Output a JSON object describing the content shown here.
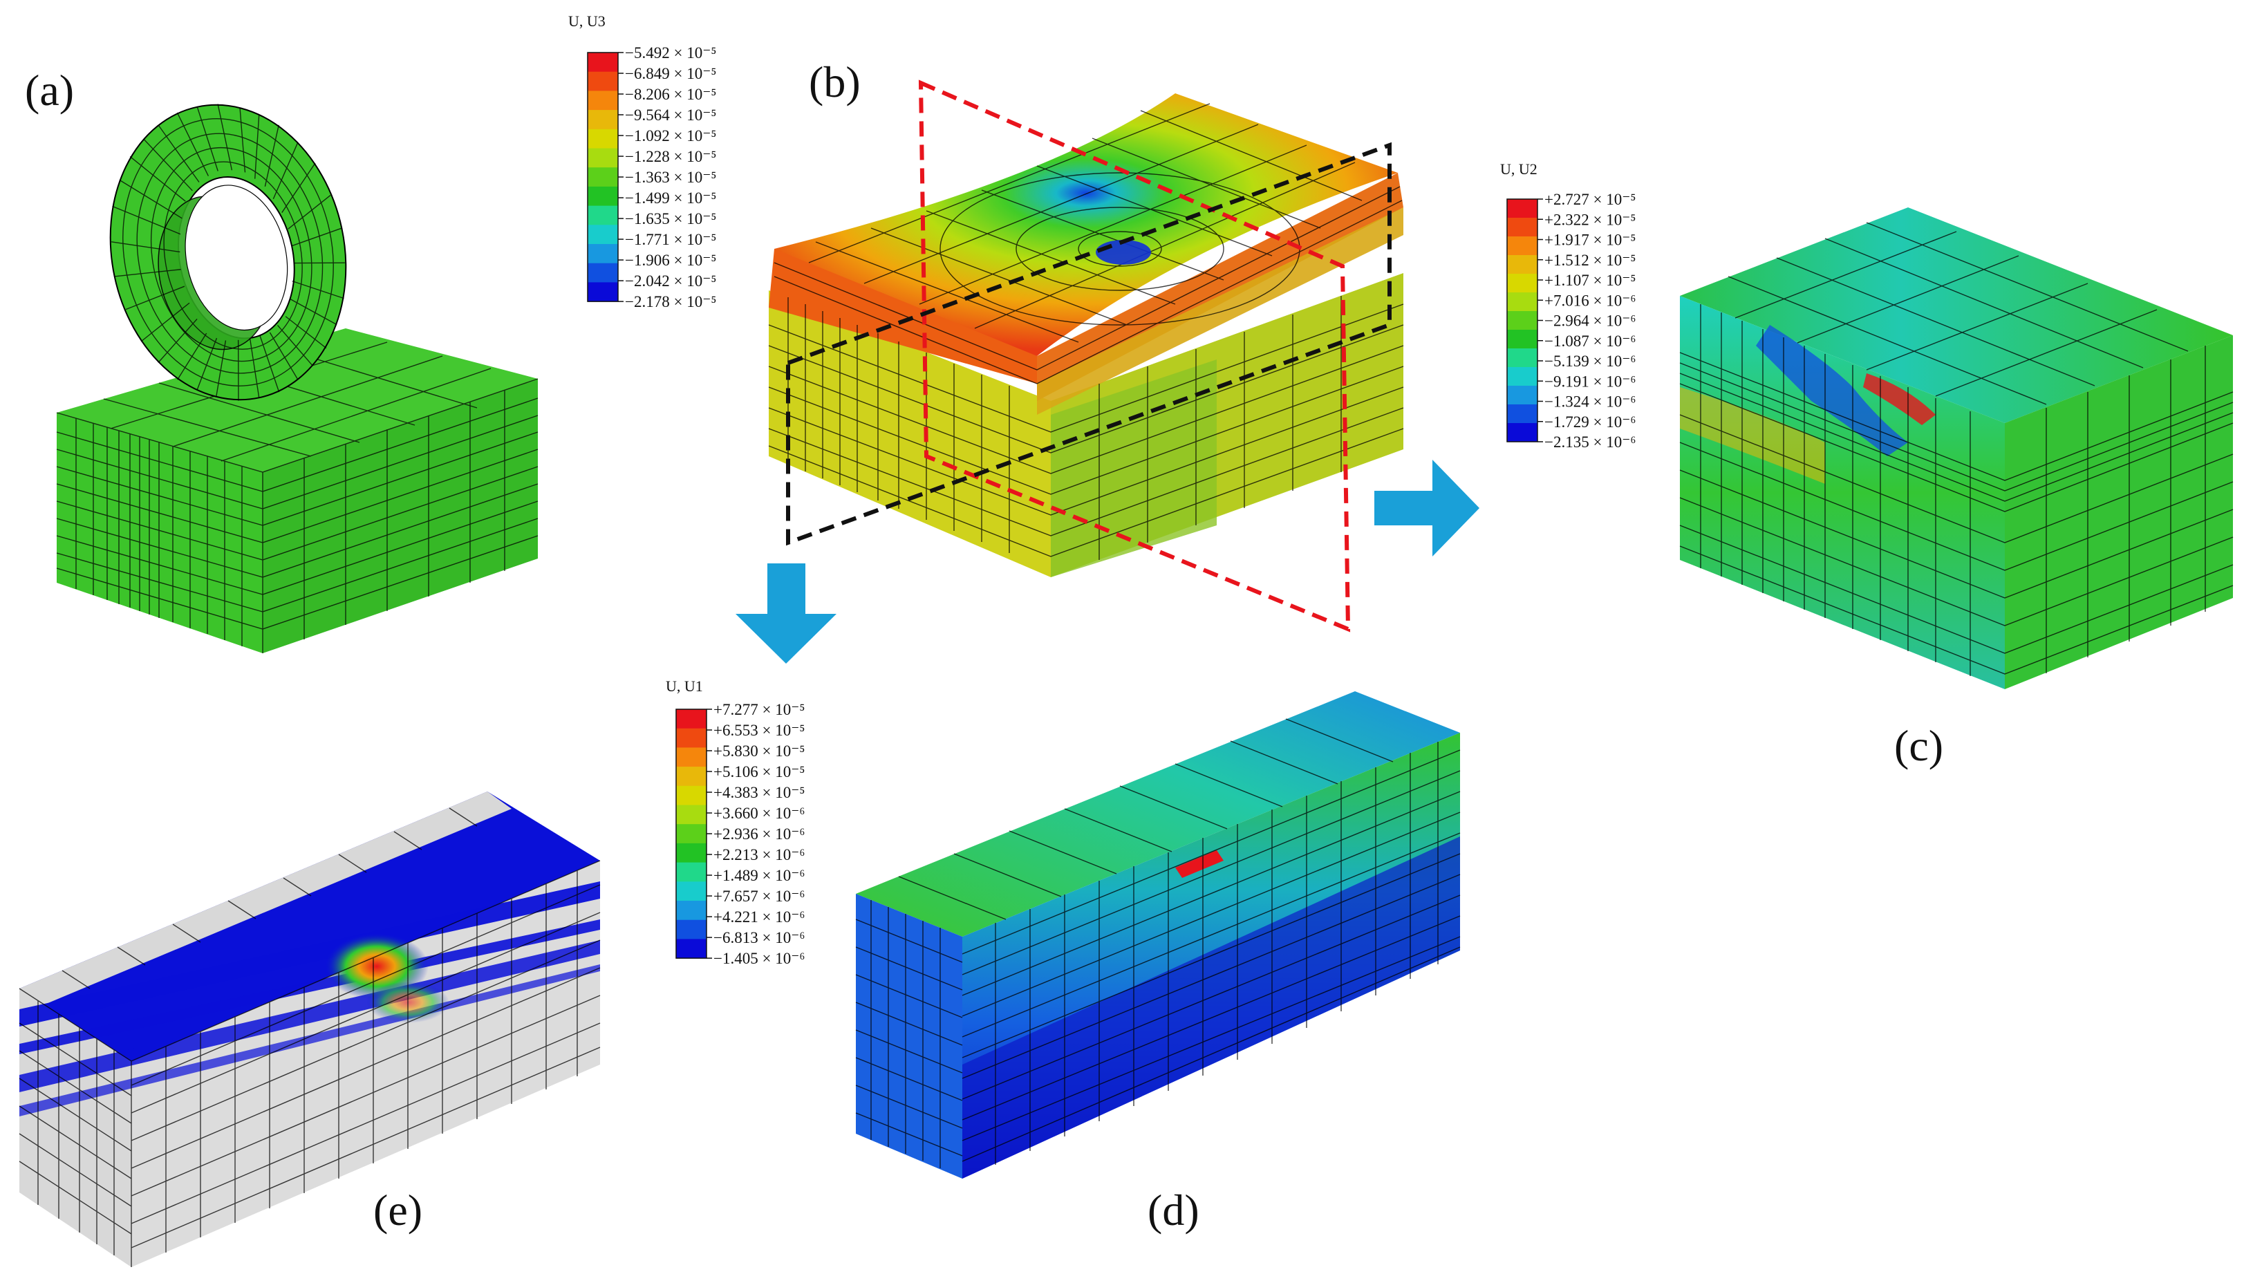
{
  "panels": {
    "a": {
      "label": "(a)"
    },
    "b": {
      "label": "(b)"
    },
    "c": {
      "label": "(c)"
    },
    "d": {
      "label": "(d)"
    },
    "e": {
      "label": "(e)"
    }
  },
  "legends": {
    "u3": {
      "title": "U, U3",
      "ticks": [
        "−5.492 × 10⁻⁵",
        "−6.849 × 10⁻⁵",
        "−8.206 × 10⁻⁵",
        "−9.564 × 10⁻⁵",
        "−1.092 × 10⁻⁵",
        "−1.228 × 10⁻⁵",
        "−1.363 × 10⁻⁵",
        "−1.499 × 10⁻⁵",
        "−1.635 × 10⁻⁵",
        "−1.771 × 10⁻⁵",
        "−1.906 × 10⁻⁵",
        "−2.042 × 10⁻⁵",
        "−2.178 × 10⁻⁵"
      ]
    },
    "u2": {
      "title": "U, U2",
      "ticks": [
        "+2.727 × 10⁻⁵",
        "+2.322 × 10⁻⁵",
        "+1.917 × 10⁻⁵",
        "+1.512 × 10⁻⁵",
        "+1.107 × 10⁻⁵",
        "+7.016 × 10⁻⁶",
        "−2.964 × 10⁻⁶",
        "−1.087 × 10⁻⁶",
        "−5.139 × 10⁻⁶",
        "−9.191 × 10⁻⁶",
        "−1.324 × 10⁻⁶",
        "−1.729 × 10⁻⁶",
        "−2.135 × 10⁻⁶"
      ]
    },
    "u1": {
      "title": "U,  U1",
      "ticks": [
        "+7.277 × 10⁻⁵",
        "+6.553 × 10⁻⁵",
        "+5.830 × 10⁻⁵",
        "+5.106 × 10⁻⁵",
        "+4.383 × 10⁻⁵",
        "+3.660 × 10⁻⁶",
        "+2.936 × 10⁻⁶",
        "+2.213 × 10⁻⁶",
        "+1.489 × 10⁻⁶",
        "+7.657 × 10⁻⁶",
        "+4.221 × 10⁻⁶",
        "−6.813 × 10⁻⁶",
        "−1.405 × 10⁻⁶"
      ]
    }
  },
  "colors": {
    "scale": [
      "#e8141c",
      "#ef4a10",
      "#f5860c",
      "#e8b80a",
      "#d8d800",
      "#a8dc10",
      "#5cd01a",
      "#22c224",
      "#20d88a",
      "#18cccc",
      "#1898e0",
      "#1050e0",
      "#0a0ad8"
    ],
    "arrow": "#1aa0d8",
    "section_red": "#e8141c",
    "section_black": "#111111",
    "mesh_green": "#3cc42a",
    "mesh_grey": "#d8d8d8",
    "deep_blue": "#0a10d8"
  }
}
